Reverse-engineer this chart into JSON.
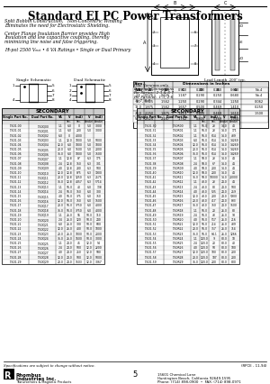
{
  "title": "Standard EI PC Power Transformers",
  "bg_color": "#ffffff",
  "text_color": "#000000",
  "subtitle_lines": [
    "Split Bobbin Construction,   Non-Concentric Winding",
    "Eliminates the need for Electrostatic Shielding.",
    "",
    "Center Flange Insulation Barrier provides High",
    "Insulation and low capacitive coupling, thereby",
    "minimizing line noise and false triggering.",
    "",
    "Hi-pot 2500 Vₘₒₜ • 6 VA Ratings • Single or Dual Primary"
  ],
  "dim_note_lines": [
    "Dual Versions only,",
    "External Connections",
    "For Series:  2-3 & 6-7",
    "For Parallel:  1-3, 2-6",
    "  & 7, 6-8"
  ],
  "dim_rows": [
    [
      "1.1",
      "0.575",
      "0.625",
      "0.950",
      "0.290",
      "0.250",
      "0.680",
      "No.4"
    ],
    [
      "2.4",
      "0.575",
      "0.625",
      "1.187",
      "0.290",
      "0.250",
      "0.680",
      "No.4"
    ],
    [
      "4.0",
      "0.625",
      "1.562",
      "1.250",
      "0.290",
      "0.344",
      "1.250",
      "0.062"
    ],
    [
      "12.0",
      "1.875",
      "1.562",
      "1.657",
      "0.500",
      "0.469",
      "1.410",
      "0.250"
    ],
    [
      "20.0",
      "2.250",
      "1.875",
      "1.413",
      "0.500",
      "0.469",
      "1.610",
      "1.500"
    ],
    [
      "56.0",
      "2.625",
      "2.187",
      "1.762",
      "0.800",
      "0.469",
      "1.950",
      ""
    ]
  ],
  "table_data_left": [
    [
      "T-601-00",
      "T-60Q00",
      "1.1",
      "6.0",
      "0",
      "5.0",
      "3000"
    ],
    [
      "T-601-01",
      "T-60Q01",
      "1.1",
      "6.0",
      "200",
      "5.0",
      "3000"
    ],
    [
      "T-601-02",
      "T-60Q02",
      "6.0",
      "0",
      "4000",
      "",
      ""
    ],
    [
      "T-601-03",
      "T-60Q03",
      "1.1",
      "12.0",
      "1000",
      "5.0",
      "5000"
    ],
    [
      "T-601-04",
      "T-60Q04",
      "12.0",
      "6.0",
      "1000",
      "5.0",
      "1000"
    ],
    [
      "T-601-05",
      "T-60Q05",
      "20.0",
      "6.0",
      "1500",
      "5.0",
      "2000"
    ],
    [
      "T-601-06",
      "T-60Q06",
      "36.0",
      "6.0",
      "1000",
      "5.0",
      "7500"
    ],
    [
      "T-601-07",
      "T-60Q07",
      "1.1",
      "12.8",
      "87",
      "6.3",
      "175"
    ],
    [
      "T-601-08",
      "T-60Q08",
      "2.4",
      "12.8",
      "150",
      "6.3",
      "301"
    ],
    [
      "T-601-09",
      "T-60Q09",
      "4.0",
      "12.8",
      "280",
      "6.3",
      "500"
    ],
    [
      "T-601-10",
      "T-60Q10",
      "12.0",
      "12.8",
      "875",
      "6.3",
      "1900"
    ],
    [
      "T-601-11",
      "T-60Q11",
      "20.0",
      "12.8",
      "1250",
      "6.3",
      "2575"
    ],
    [
      "T-601-12",
      "T-60Q12",
      "36.0",
      "12.8",
      "4057",
      "6.3",
      "5714"
    ],
    [
      "T-601-13",
      "T-60Q13",
      "1.1",
      "56.0",
      "40",
      "6.0",
      "138"
    ],
    [
      "T-601-14",
      "T-60Q14",
      "2.4",
      "56.0",
      "150",
      "6.0",
      "300"
    ],
    [
      "T-601-15",
      "T-60Q15",
      "4.0",
      "56.0",
      "375",
      "6.0",
      "750"
    ],
    [
      "T-601-16",
      "T-60Q16",
      "12.0",
      "56.0",
      "750",
      "6.0",
      "1500"
    ],
    [
      "T-601-17",
      "T-60Q17",
      "20.0",
      "56.0",
      "3750",
      "6.0",
      "4000"
    ],
    [
      "T-601-18",
      "T-60Q18",
      "36.0",
      "56.0",
      "3750",
      "6.0",
      "4000"
    ],
    [
      "T-601-19",
      "T-60Q19",
      "1.1",
      "26.0",
      "55",
      "50.0",
      "110"
    ],
    [
      "T-601-20",
      "T-60Q20",
      "2.4",
      "26.0",
      "120",
      "50.0",
      "240"
    ],
    [
      "T-601-21",
      "T-60Q21",
      "6.0",
      "26.0",
      "300",
      "50.0",
      "600"
    ],
    [
      "T-601-22",
      "T-60Q22",
      "12.0",
      "26.0",
      "400",
      "50.0",
      "1000"
    ],
    [
      "T-601-23",
      "T-60Q23",
      "20.0",
      "26.0",
      "1000",
      "50.0",
      "2000"
    ],
    [
      "T-601-24",
      "T-60Q24",
      "36.0",
      "26.0",
      "1600",
      "50.0",
      "3000"
    ],
    [
      "T-601-25",
      "T-60Q25",
      "1.1",
      "24.0",
      "45",
      "12.0",
      "54"
    ],
    [
      "T-601-26",
      "T-60Q26",
      "2.4",
      "24.0",
      "500",
      "12.0",
      "2200"
    ],
    [
      "T-601-27",
      "T-60Q27",
      "4.0",
      "24.0",
      "250",
      "12.0",
      "580"
    ],
    [
      "T-601-28",
      "T-60Q28",
      "12.0",
      "24.0",
      "500",
      "12.0",
      "5000"
    ],
    [
      "T-601-29",
      "T-60Q29",
      "20.0",
      "24.0",
      "1503",
      "12.0",
      "3067"
    ]
  ],
  "table_data_right": [
    [
      "T-601-30",
      "T-60R00",
      "1.1",
      "56.0",
      "23",
      "14.0",
      "44"
    ],
    [
      "T-601-31",
      "T-60R01",
      "1.1",
      "56.0",
      "23",
      "14.0",
      "171"
    ],
    [
      "T-601-32",
      "T-60R02",
      "1.1",
      "56.0",
      "614",
      "14.0",
      "439"
    ],
    [
      "T-601-33",
      "T-60R03",
      "6.0",
      "56.0",
      "614",
      "14.0",
      "14269"
    ],
    [
      "T-601-34",
      "T-60R04",
      "12.0",
      "56.0",
      "614",
      "14.0",
      "14269"
    ],
    [
      "T-601-35",
      "T-60R05",
      "20.0",
      "56.0",
      "614",
      "14.0",
      "14269"
    ],
    [
      "T-601-36",
      "T-60R06",
      "36.0",
      "56.0",
      "614",
      "14.0",
      "14269"
    ],
    [
      "T-601-37",
      "T-60R07",
      "1.1",
      "58.0",
      "23",
      "14.0",
      "44"
    ],
    [
      "T-601-38",
      "T-60R08",
      "2.4",
      "58.0",
      "67",
      "14.0",
      "44"
    ],
    [
      "T-601-39",
      "T-60R09",
      "4.0",
      "58.0",
      "200",
      "14.0",
      "44"
    ],
    [
      "T-601-40",
      "T-60R10",
      "12.0",
      "58.0",
      "200",
      "14.0",
      "44"
    ],
    [
      "T-601-41",
      "T-60R11",
      "36.0",
      "58.0",
      "10000",
      "14.0",
      "20000"
    ],
    [
      "T-601-42",
      "T-60R12",
      "1.1",
      "48.0",
      "23",
      "24.0",
      "44"
    ],
    [
      "T-601-43",
      "T-60R13",
      "2.4",
      "48.0",
      "80",
      "24.0",
      "500"
    ],
    [
      "T-601-44",
      "T-60R14",
      "4.0",
      "48.0",
      "525",
      "24.0",
      "259"
    ],
    [
      "T-601-45",
      "T-60R15",
      "12.0",
      "48.0",
      "200",
      "24.0",
      "5900"
    ],
    [
      "T-601-46",
      "T-60R16",
      "20.0",
      "48.0",
      "417",
      "24.0",
      "833"
    ],
    [
      "T-601-47",
      "T-60R17",
      "36.0",
      "48.0",
      "750",
      "24.0",
      "1500"
    ],
    [
      "T-601-48",
      "T-60R18",
      "1.1",
      "56.0",
      "20",
      "26.0",
      "80"
    ],
    [
      "T-601-49",
      "T-60R19",
      "2.4",
      "56.0",
      "43",
      "26.0",
      "98"
    ],
    [
      "T-601-50",
      "T-60R20",
      "4.0",
      "56.0",
      "517",
      "26.0",
      "216"
    ],
    [
      "T-601-51",
      "T-60R21",
      "12.0",
      "56.0",
      "214",
      "26.0",
      "439"
    ],
    [
      "T-601-52",
      "T-60R22",
      "20.0",
      "56.0",
      "357",
      "26.0",
      "714"
    ],
    [
      "T-601-53",
      "T-60R23",
      "36.0",
      "56.0",
      "64.1",
      "26.0",
      "1266"
    ],
    [
      "T-601-54",
      "T-60R24",
      "1.1",
      "120.0",
      "9",
      "80.0",
      "18"
    ],
    [
      "T-601-55",
      "T-60R25",
      "2.4",
      "120.0",
      "20",
      "80.0",
      "40"
    ],
    [
      "T-601-56",
      "T-60R26",
      "4.0",
      "120.0",
      "50",
      "80.0",
      "100"
    ],
    [
      "T-601-57",
      "T-60R27",
      "12.0",
      "120.0",
      "100",
      "80.0",
      "200"
    ],
    [
      "T-601-58",
      "T-60R28",
      "20.0",
      "120.0",
      "187",
      "80.0",
      "200"
    ],
    [
      "T-601-59",
      "T-60R29",
      "36.0",
      "120.0",
      "200",
      "80.0",
      "800"
    ]
  ],
  "footer_note": "Specifications are subject to change without notice.",
  "page_number": "5",
  "price_note": "(RPCE - 11-94)",
  "company_name": "Rhombus Industries Inc.",
  "address_line1": "15601 Chemical Lane",
  "address_line2": "Huntington Beach, California 92649-1595",
  "phone_line": "Phone: (714) 898-0900  •  FAX: (714) 898-0971"
}
